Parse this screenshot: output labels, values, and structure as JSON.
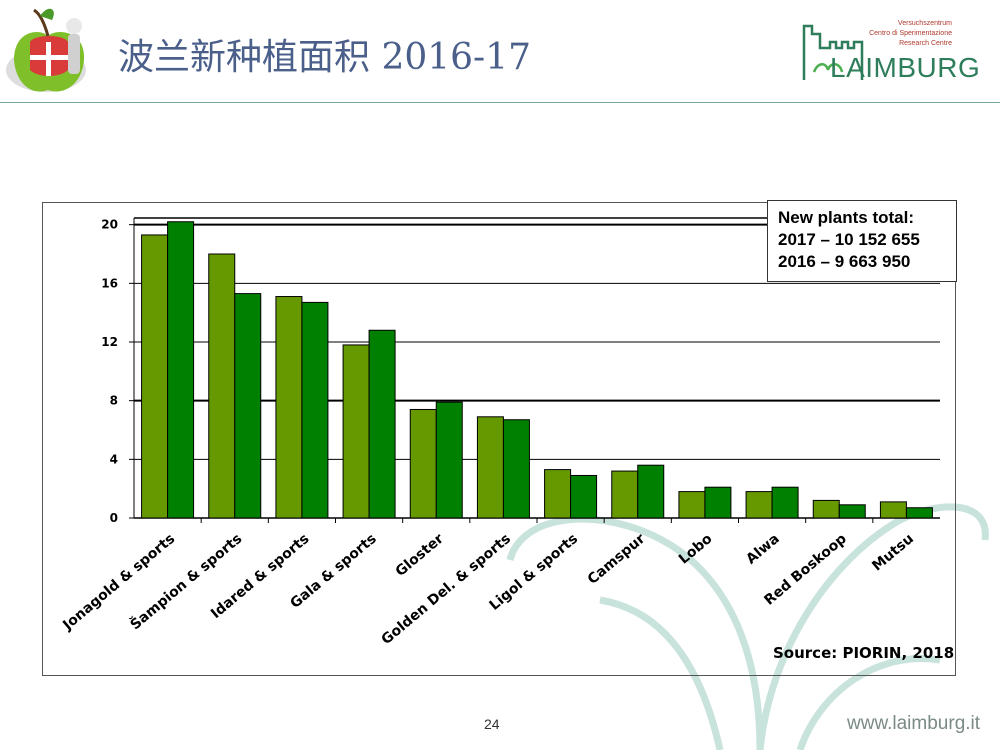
{
  "slide": {
    "title": "波兰新种植面积   2016-17",
    "page_number": "24",
    "website": "www.laimburg.it"
  },
  "brand": {
    "line1": "Versuchszentrum",
    "line2": "Centro di Sperimentazione",
    "line3": "Research Centre",
    "name": "LAIMBURG",
    "color": "#2e7d5b"
  },
  "legend_box": {
    "line1": "New plants total:",
    "line2": "2017 – 10 152 655",
    "line3": "2016 – 9 663 950"
  },
  "source": "Source: PIORIN, 2018",
  "chart_data": {
    "type": "bar",
    "categories": [
      "Jonagold & sports",
      "Šampion & sports",
      "Idared & sports",
      "Gala & sports",
      "Gloster",
      "Golden Del. & sports",
      "Ligol & sports",
      "Camspur",
      "Lobo",
      "Alwa",
      "Red Boskoop",
      "Mutsu"
    ],
    "series": [
      {
        "values": [
          19.3,
          18.0,
          15.1,
          11.8,
          7.4,
          6.9,
          3.3,
          3.2,
          1.8,
          1.8,
          1.2,
          1.1
        ],
        "color": "#669900"
      },
      {
        "values": [
          20.2,
          15.3,
          14.7,
          12.8,
          7.9,
          6.7,
          2.9,
          3.6,
          2.1,
          2.1,
          0.9,
          0.7
        ],
        "color": "#008000"
      }
    ],
    "yticks": [
      0,
      4,
      8,
      12,
      16,
      20
    ],
    "ylim": [
      0,
      21
    ],
    "grid": true
  }
}
